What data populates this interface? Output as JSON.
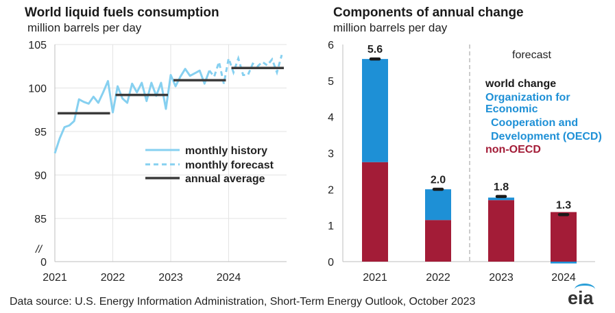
{
  "left": {
    "title": "World liquid fuels consumption",
    "subtitle": "million barrels per day"
  },
  "right": {
    "title": "Components of annual change",
    "subtitle": "million barrels per day",
    "forecast_label": "forecast"
  },
  "source": "Data source: U.S. Energy Information Administration, Short-Term Energy Outlook, October 2023",
  "logo": "eia",
  "colors": {
    "history": "#86d0f0",
    "annual": "#3a3a3a",
    "oecd": "#1e90d6",
    "non_oecd": "#a31c37",
    "world": "#1a1a1a"
  },
  "chart_data": [
    {
      "type": "line",
      "title": "World liquid fuels consumption",
      "ylabel": "million barrels per day",
      "ylim": [
        0,
        105
      ],
      "y_ticks": [
        "0",
        "85",
        "90",
        "95",
        "100",
        "105"
      ],
      "x_ticks": [
        "2021",
        "2022",
        "2023",
        "2024"
      ],
      "axis_break": "//",
      "legend": [
        "monthly history",
        "monthly forecast",
        "annual average"
      ],
      "legend_position": "bottom-right",
      "series": [
        {
          "name": "monthly history",
          "x": [
            "2021-01",
            "2021-02",
            "2021-03",
            "2021-04",
            "2021-05",
            "2021-06",
            "2021-07",
            "2021-08",
            "2021-09",
            "2021-10",
            "2021-11",
            "2021-12",
            "2022-01",
            "2022-02",
            "2022-03",
            "2022-04",
            "2022-05",
            "2022-06",
            "2022-07",
            "2022-08",
            "2022-09",
            "2022-10",
            "2022-11",
            "2022-12",
            "2023-01",
            "2023-02",
            "2023-03",
            "2023-04",
            "2023-05",
            "2023-06",
            "2023-07",
            "2023-08",
            "2023-09"
          ],
          "values": [
            92.5,
            94.2,
            95.5,
            95.7,
            96.2,
            98.7,
            98.4,
            98.2,
            99.0,
            98.3,
            99.5,
            100.8,
            97.2,
            100.2,
            98.8,
            98.3,
            100.5,
            99.5,
            100.6,
            98.5,
            100.6,
            99.1,
            100.6,
            97.6,
            101.5,
            100.2,
            101.3,
            102.2,
            101.4,
            101.7,
            102.0,
            100.5,
            102.0
          ]
        },
        {
          "name": "monthly forecast",
          "x": [
            "2023-09",
            "2023-10",
            "2023-11",
            "2023-12",
            "2024-01",
            "2024-02",
            "2024-03",
            "2024-04",
            "2024-05",
            "2024-06",
            "2024-07",
            "2024-08",
            "2024-09",
            "2024-10",
            "2024-11",
            "2024-12"
          ],
          "values": [
            102.0,
            101.3,
            103.0,
            100.5,
            103.4,
            101.8,
            103.4,
            101.5,
            101.5,
            102.8,
            102.5,
            103.0,
            102.6,
            103.3,
            101.8,
            103.8
          ]
        },
        {
          "name": "annual average",
          "x": [
            "2021",
            "2022",
            "2023",
            "2024"
          ],
          "values": [
            97.1,
            99.2,
            100.9,
            102.3
          ]
        }
      ]
    },
    {
      "type": "bar",
      "title": "Components of annual change",
      "ylabel": "million barrels per day",
      "categories": [
        "2021",
        "2022",
        "2023",
        "2024"
      ],
      "ylim": [
        0,
        6
      ],
      "y_ticks": [
        "0",
        "1",
        "2",
        "3",
        "4",
        "5",
        "6"
      ],
      "legend": [
        "world change",
        "Organization for Economic Cooperation and Development (OECD)",
        "non-OECD"
      ],
      "legend_position": "right",
      "forecast_from": "2023",
      "series": [
        {
          "name": "non-OECD",
          "values": [
            2.75,
            1.15,
            1.7,
            1.37
          ]
        },
        {
          "name": "Organization for Economic Cooperation and Development (OECD)",
          "values": [
            2.85,
            0.85,
            0.07,
            -0.05
          ]
        },
        {
          "name": "world change",
          "values": [
            5.6,
            2.0,
            1.8,
            1.3
          ],
          "labels": [
            "5.6",
            "2.0",
            "1.8",
            "1.3"
          ]
        }
      ]
    }
  ]
}
